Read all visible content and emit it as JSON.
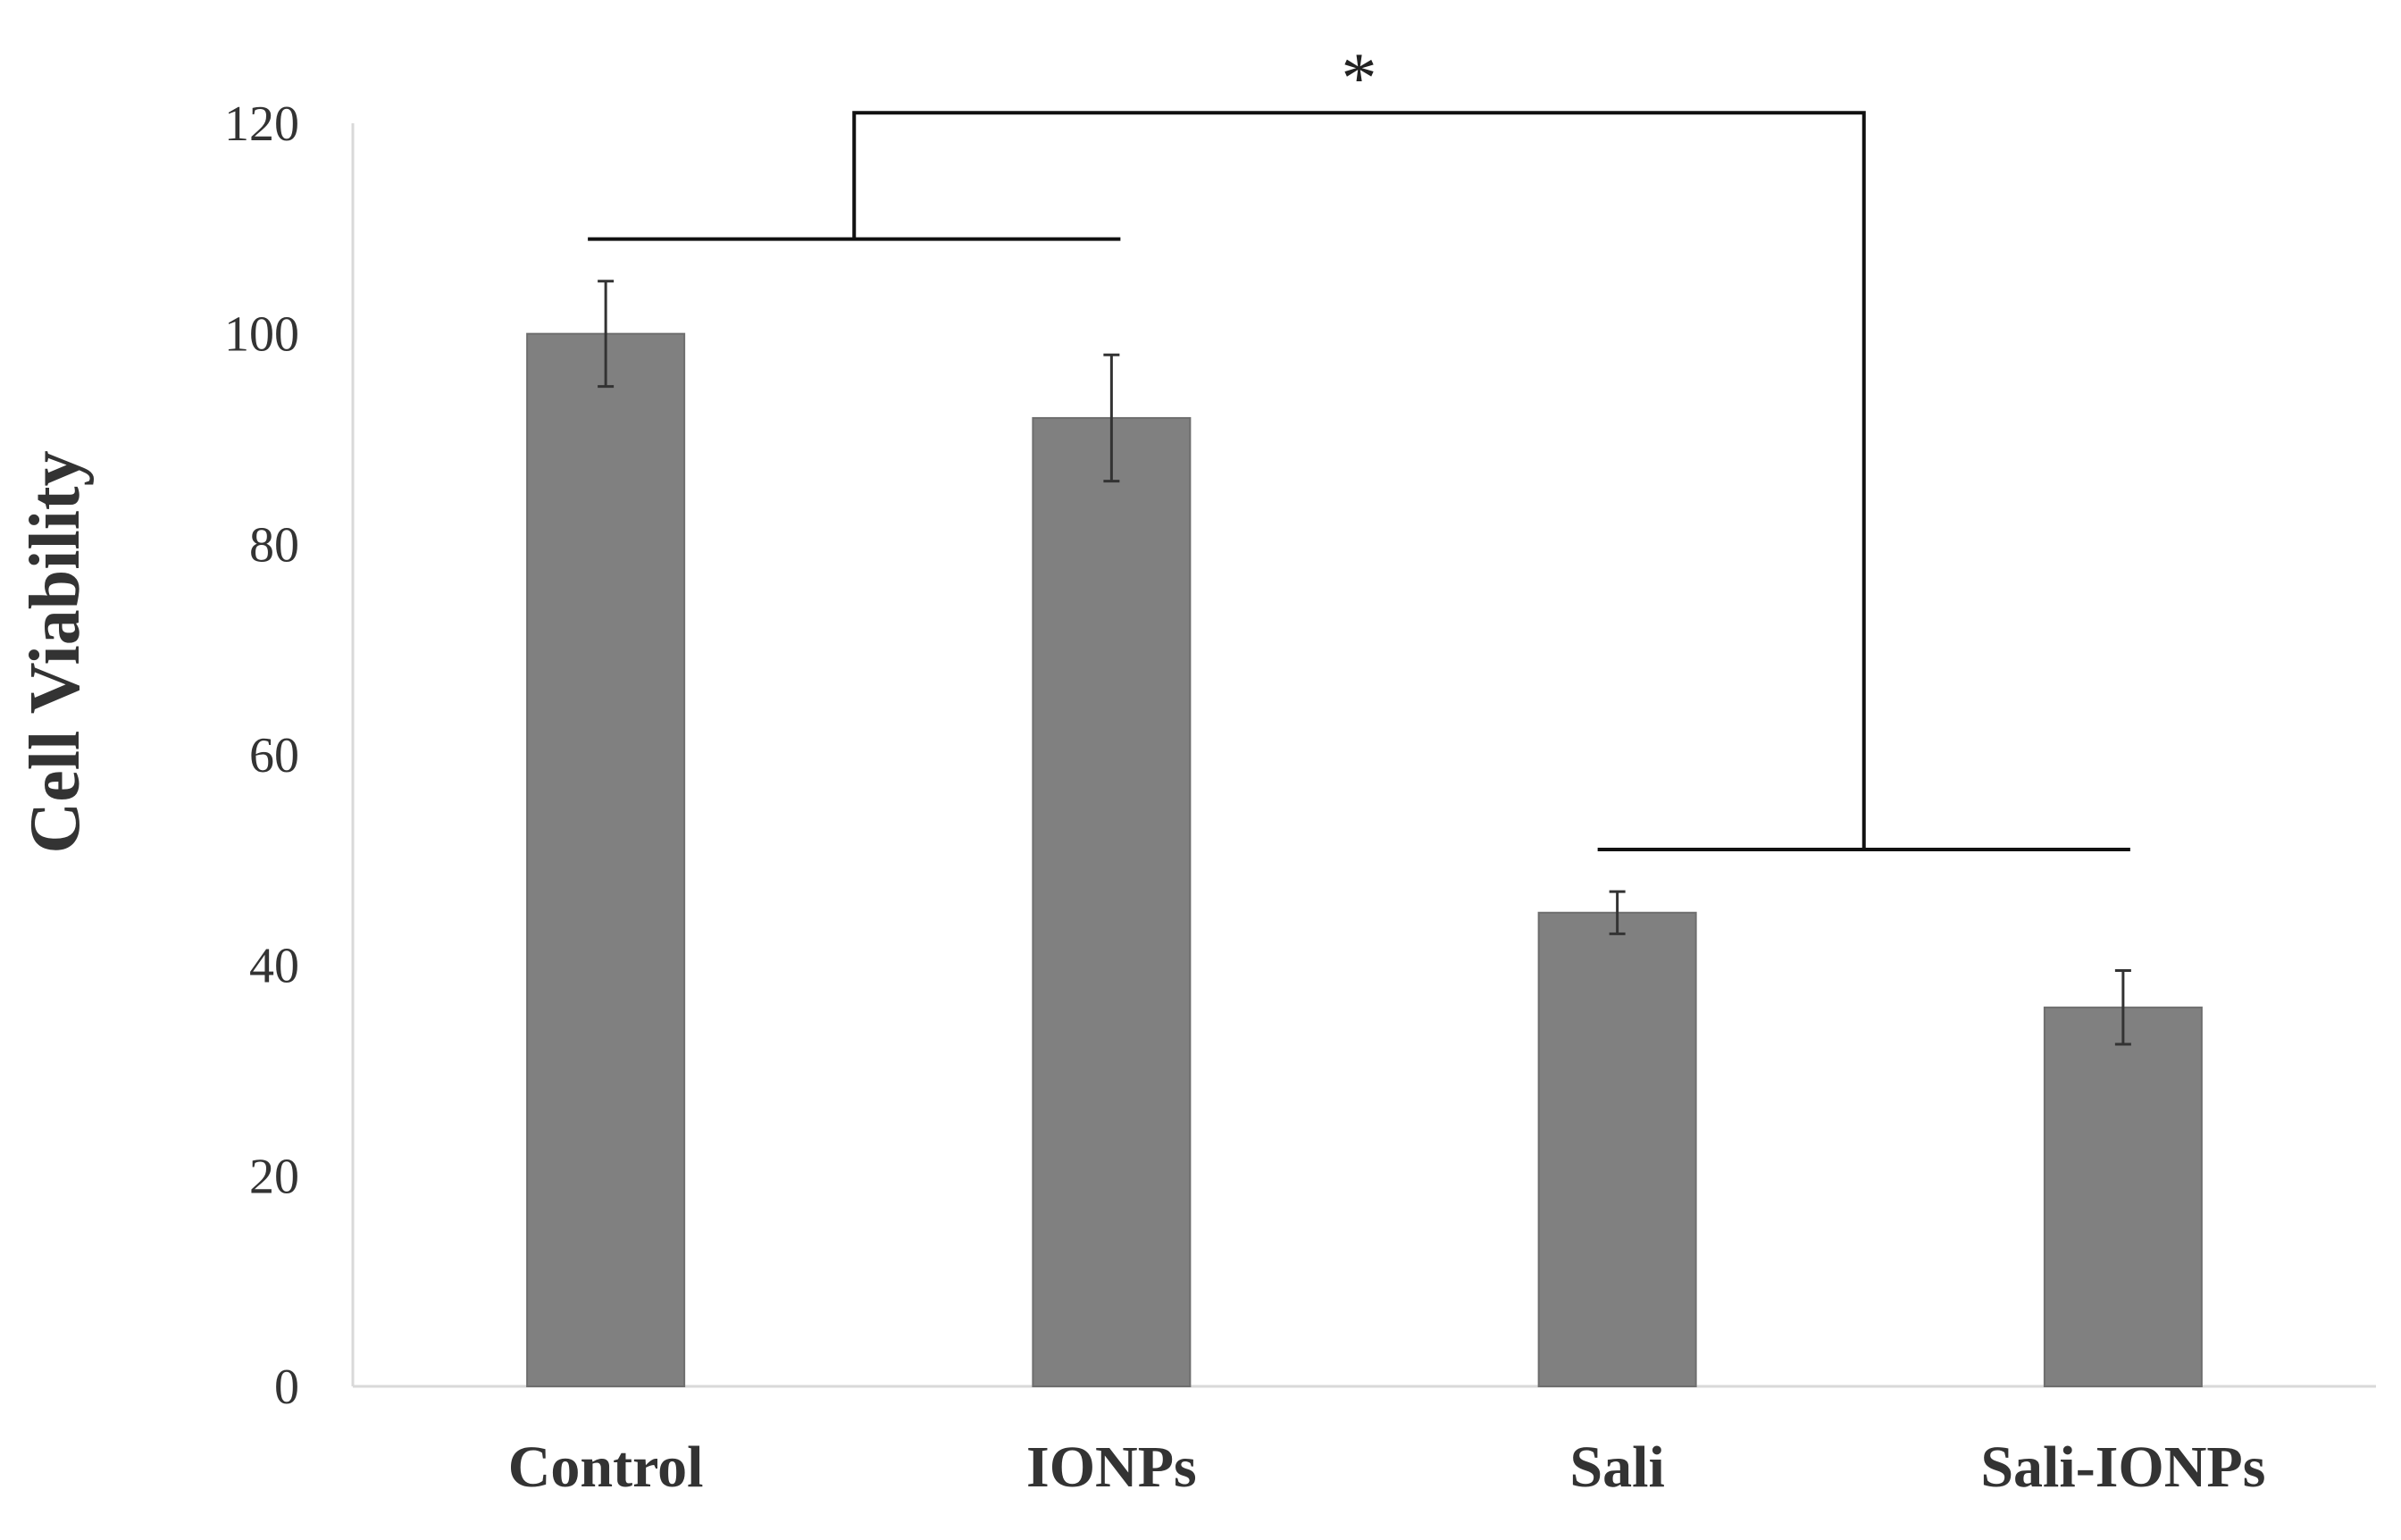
{
  "chart_data": {
    "type": "bar",
    "categories": [
      "Control",
      "IONPs",
      "Sali",
      "Sali-IONPs"
    ],
    "values": [
      100,
      92,
      45,
      36
    ],
    "errors": [
      5,
      6,
      2,
      3.5
    ],
    "title": "",
    "xlabel": "",
    "ylabel": "Cell Viability",
    "ylim": [
      0,
      120
    ],
    "yticks": [
      0,
      20,
      40,
      60,
      80,
      100,
      120
    ],
    "grid": false,
    "legend": "none",
    "bar_color": "#808080",
    "significance": {
      "label": "*",
      "left_group": [
        "Control",
        "IONPs"
      ],
      "right_group": [
        "Sali",
        "Sali-IONPs"
      ],
      "left_group_level": 109,
      "right_group_level": 51,
      "top_level": 121
    }
  }
}
